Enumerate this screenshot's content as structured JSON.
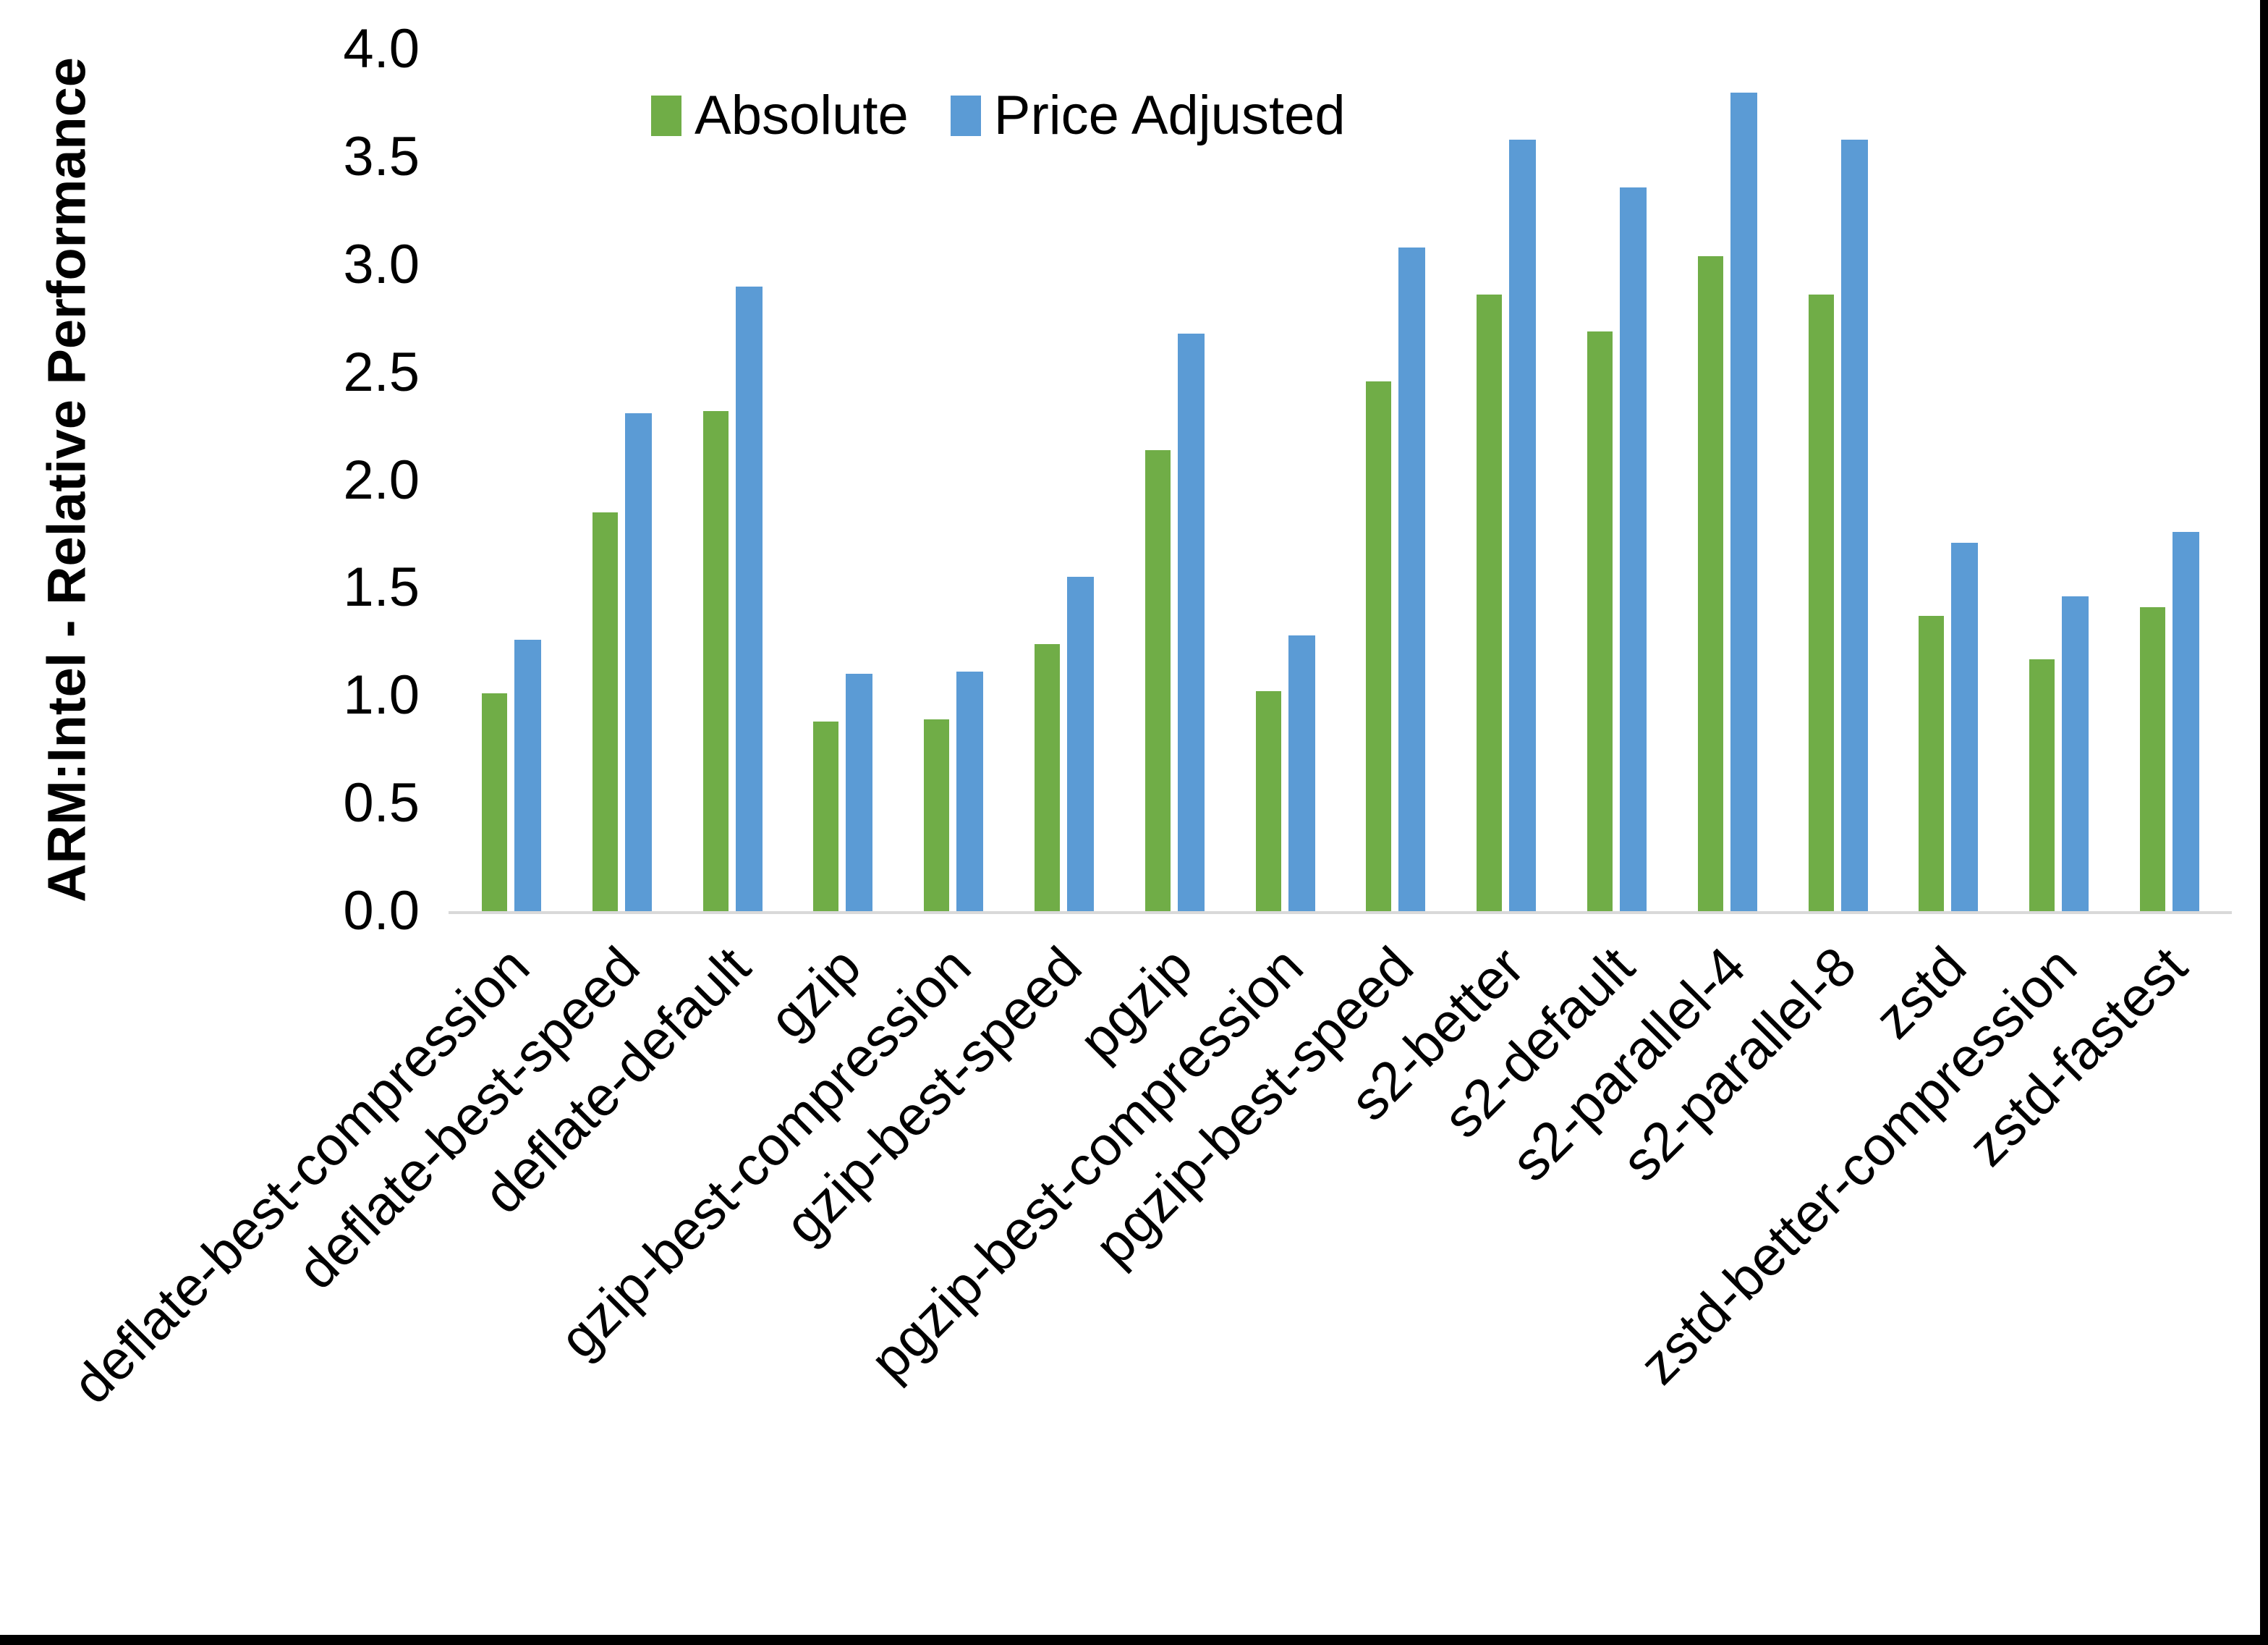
{
  "chart_data": {
    "type": "bar",
    "title": "",
    "xlabel": "",
    "ylabel": "ARM:Intel - Relative Performance",
    "ylim": [
      0.0,
      4.0
    ],
    "ytick_step": 0.5,
    "ytick_labels": [
      "0.0",
      "0.5",
      "1.0",
      "1.5",
      "2.0",
      "2.5",
      "3.0",
      "3.5",
      "4.0"
    ],
    "grid": false,
    "legend_position": "top-center",
    "axis_line_color": "#D9D9D9",
    "background_color": "#FFFFFF",
    "categories": [
      "deflate-best-compression",
      "deflate-best-speed",
      "deflate-default",
      "gzip",
      "gzip-best-compression",
      "gzip-best-speed",
      "pgzip",
      "pgzip-best-compression",
      "pgzip-best-speed",
      "s2-better",
      "s2-default",
      "s2-parallel-4",
      "s2-parallel-8",
      "zstd",
      "zstd-better-compression",
      "zstd-fastest"
    ],
    "series": [
      {
        "name": "Absolute",
        "color": "#70AD47",
        "values": [
          1.01,
          1.85,
          2.32,
          0.88,
          0.89,
          1.24,
          2.14,
          1.02,
          2.46,
          2.86,
          2.69,
          3.04,
          2.86,
          1.37,
          1.17,
          1.41
        ]
      },
      {
        "name": "Price Adjusted",
        "color": "#5B9BD5",
        "values": [
          1.26,
          2.31,
          2.9,
          1.1,
          1.11,
          1.55,
          2.68,
          1.28,
          3.08,
          3.58,
          3.36,
          3.8,
          3.58,
          1.71,
          1.46,
          1.76
        ]
      }
    ]
  }
}
